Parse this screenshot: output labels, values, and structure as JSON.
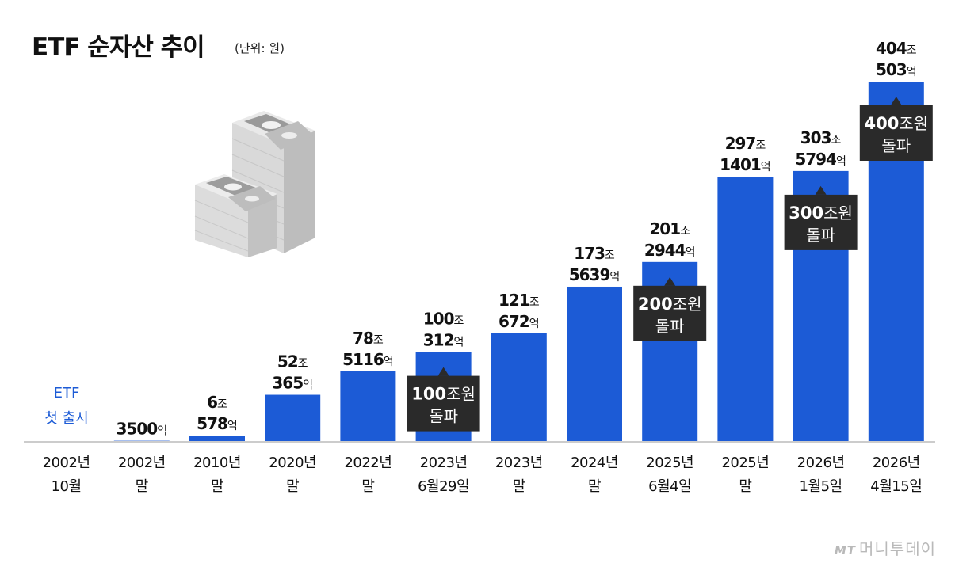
{
  "title": "ETF 순자산 추이",
  "unit": "(단위: 원)",
  "launch_label": [
    "ETF",
    "첫 출시"
  ],
  "watermark": {
    "logo": "MT",
    "text": "머니투데이"
  },
  "colors": {
    "bar": "#1c5bd6",
    "callout": "#2a2a2a",
    "launch": "#1c5bd6",
    "axis": "#cccccc"
  },
  "chart_data": {
    "type": "bar",
    "title": "ETF 순자산 추이",
    "unit": "(단위: 원)",
    "xlabel": "",
    "ylabel": "",
    "ylim": [
      0,
      404.05
    ],
    "categories": [
      [
        "2002년",
        "10월"
      ],
      [
        "2002년",
        "말"
      ],
      [
        "2010년",
        "말"
      ],
      [
        "2020년",
        "말"
      ],
      [
        "2022년",
        "말"
      ],
      [
        "2023년",
        "6월29일"
      ],
      [
        "2023년",
        "말"
      ],
      [
        "2024년",
        "말"
      ],
      [
        "2025년",
        "6월4일"
      ],
      [
        "2025년",
        "말"
      ],
      [
        "2026년",
        "1월5일"
      ],
      [
        "2026년",
        "4월15일"
      ]
    ],
    "values": [
      0,
      0.35,
      6.0578,
      52.0365,
      78.5116,
      100.0312,
      121.0672,
      173.5639,
      201.2944,
      297.1401,
      303.5794,
      404.0503
    ],
    "value_labels": [
      null,
      [
        {
          "n": "3500",
          "u": "억"
        }
      ],
      [
        {
          "n": "6",
          "u": "조"
        },
        {
          "n": "578",
          "u": "억"
        }
      ],
      [
        {
          "n": "52",
          "u": "조"
        },
        {
          "n": "365",
          "u": "억"
        }
      ],
      [
        {
          "n": "78",
          "u": "조"
        },
        {
          "n": "5116",
          "u": "억"
        }
      ],
      [
        {
          "n": "100",
          "u": "조"
        },
        {
          "n": "312",
          "u": "억"
        }
      ],
      [
        {
          "n": "121",
          "u": "조"
        },
        {
          "n": "672",
          "u": "억"
        }
      ],
      [
        {
          "n": "173",
          "u": "조"
        },
        {
          "n": "5639",
          "u": "억"
        }
      ],
      [
        {
          "n": "201",
          "u": "조"
        },
        {
          "n": "2944",
          "u": "억"
        }
      ],
      [
        {
          "n": "297",
          "u": "조"
        },
        {
          "n": "1401",
          "u": "억"
        }
      ],
      [
        {
          "n": "303",
          "u": "조"
        },
        {
          "n": "5794",
          "u": "억"
        }
      ],
      [
        {
          "n": "404",
          "u": "조"
        },
        {
          "n": "503",
          "u": "억"
        }
      ]
    ],
    "annotations": [
      {
        "bar": 5,
        "n": "100",
        "u": "조원",
        "line2": "돌파"
      },
      {
        "bar": 8,
        "n": "200",
        "u": "조원",
        "line2": "돌파"
      },
      {
        "bar": 10,
        "n": "300",
        "u": "조원",
        "line2": "돌파"
      },
      {
        "bar": 11,
        "n": "400",
        "u": "조원",
        "line2": "돌파"
      }
    ]
  }
}
